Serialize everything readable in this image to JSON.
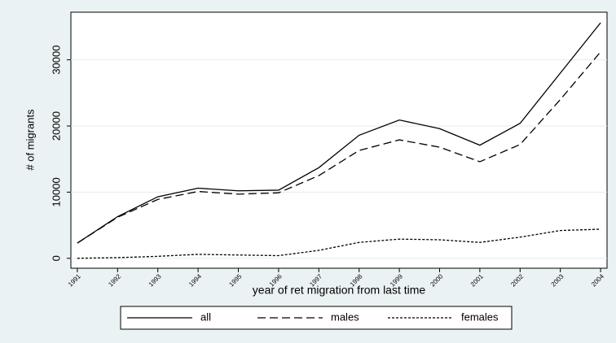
{
  "chart_data": {
    "type": "line",
    "x": [
      1991,
      1992,
      1993,
      1994,
      1995,
      1996,
      1997,
      1998,
      1999,
      2000,
      2001,
      2002,
      2003,
      2004
    ],
    "series": [
      {
        "name": "all",
        "color": "#000000",
        "style": "solid",
        "values": [
          2300,
          6300,
          9300,
          10600,
          10200,
          10300,
          13700,
          18600,
          20900,
          19600,
          17100,
          20400,
          28000,
          35600
        ]
      },
      {
        "name": "males",
        "color": "#000000",
        "style": "dashed",
        "values": [
          2300,
          6200,
          8900,
          10100,
          9700,
          9900,
          12500,
          16300,
          17900,
          16800,
          14600,
          17200,
          24000,
          31200
        ]
      },
      {
        "name": "females",
        "color": "#000000",
        "style": "dotted",
        "values": [
          0,
          100,
          300,
          600,
          500,
          400,
          1200,
          2400,
          2900,
          2800,
          2400,
          3200,
          4200,
          4400
        ]
      }
    ],
    "xlabel": "year of ret migration from last time",
    "ylabel": "# of migrants",
    "xlim": [
      1990.84,
      2004.16
    ],
    "xticks": [
      1991,
      1992,
      1993,
      1994,
      1995,
      1996,
      1997,
      1998,
      1999,
      2000,
      2001,
      2002,
      2003,
      2004
    ],
    "ylim": [
      -1500,
      37200
    ],
    "yticks": [
      0,
      10000,
      20000,
      30000
    ],
    "grid": true,
    "legend": "bottom"
  }
}
